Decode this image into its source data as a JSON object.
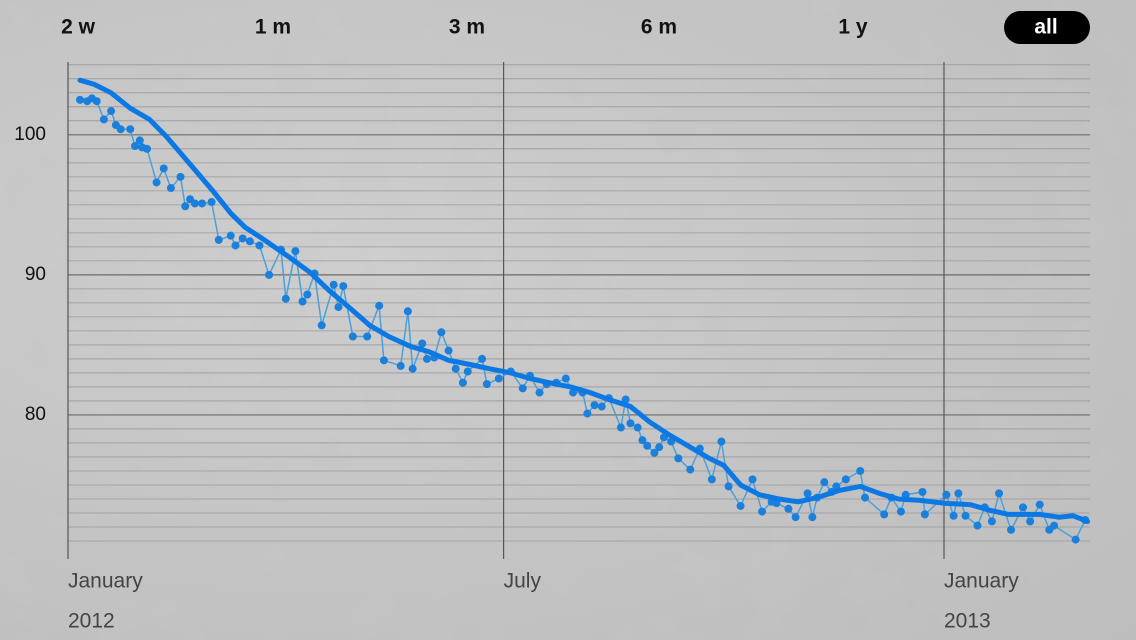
{
  "range_buttons": [
    "2 w",
    "1 m",
    "3 m",
    "6 m",
    "1 y",
    "all"
  ],
  "selected_range_index": 5,
  "chart_data": {
    "type": "line",
    "xlim": [
      0,
      427
    ],
    "xticks": [
      {
        "value": 0,
        "label": "January"
      },
      {
        "value": 182,
        "label": "July"
      },
      {
        "value": 366,
        "label": "January"
      }
    ],
    "x_year_ticks": [
      {
        "value": 0,
        "label": "2012"
      },
      {
        "value": 366,
        "label": "2013"
      }
    ],
    "ylim": [
      70,
      105.2
    ],
    "yticks": [
      80,
      90,
      100
    ],
    "y_minor_ticks": [
      71,
      72,
      73,
      74,
      75,
      76,
      77,
      78,
      79,
      81,
      82,
      83,
      84,
      85,
      86,
      87,
      88,
      89,
      91,
      92,
      93,
      94,
      95,
      96,
      97,
      98,
      99,
      101,
      102,
      103,
      104,
      105
    ],
    "grid": true,
    "series": [
      {
        "color": "#1b7fdc",
        "line_color": "#4aa0dc",
        "markers": true,
        "line_width": 1.5,
        "x": [
          5,
          8,
          10,
          12,
          15,
          18,
          20,
          22,
          26,
          28,
          30,
          31,
          33,
          37,
          40,
          43,
          47,
          49,
          51,
          53,
          56,
          60,
          63,
          68,
          70,
          73,
          76,
          80,
          84,
          89,
          91,
          95,
          98,
          100,
          103,
          106,
          111,
          113,
          115,
          119,
          125,
          130,
          132,
          139,
          142,
          144,
          148,
          150,
          153,
          156,
          159,
          162,
          165,
          167,
          173,
          175,
          180,
          185,
          190,
          193,
          197,
          200,
          204,
          208,
          211,
          215,
          217,
          220,
          223,
          226,
          231,
          233,
          235,
          238,
          240,
          242,
          245,
          247,
          249,
          252,
          255,
          260,
          264,
          269,
          273,
          276,
          281,
          286,
          290,
          294,
          296,
          301,
          304,
          309,
          311,
          313,
          316,
          319,
          321,
          325,
          331,
          333,
          341,
          344,
          348,
          350,
          357,
          358,
          367,
          370,
          372,
          375,
          380,
          383,
          386,
          389,
          394,
          399,
          402,
          406,
          410,
          412,
          421,
          425
        ],
        "values": [
          102.5,
          102.4,
          102.6,
          102.4,
          101.1,
          101.7,
          100.7,
          100.4,
          100.4,
          99.2,
          99.6,
          99.1,
          99.0,
          96.6,
          97.6,
          96.2,
          97.0,
          94.9,
          95.4,
          95.1,
          95.1,
          95.2,
          92.5,
          92.8,
          92.1,
          92.6,
          92.4,
          92.1,
          90.0,
          91.8,
          88.3,
          91.7,
          88.1,
          88.6,
          90.1,
          86.4,
          89.3,
          87.7,
          89.2,
          85.6,
          85.6,
          87.8,
          83.9,
          83.5,
          87.4,
          83.3,
          85.1,
          84.0,
          84.1,
          85.9,
          84.6,
          83.3,
          82.3,
          83.1,
          84.0,
          82.2,
          82.6,
          83.1,
          81.9,
          82.8,
          81.6,
          82.2,
          82.3,
          82.6,
          81.6,
          81.6,
          80.1,
          80.7,
          80.6,
          81.2,
          79.1,
          81.1,
          79.4,
          79.1,
          78.2,
          77.8,
          77.3,
          77.7,
          78.4,
          78.1,
          76.9,
          76.1,
          77.6,
          75.4,
          78.1,
          74.9,
          73.5,
          75.4,
          73.1,
          73.8,
          73.7,
          73.3,
          72.7,
          74.4,
          72.7,
          74.1,
          75.2,
          74.5,
          74.9,
          75.4,
          76.0,
          74.1,
          72.9,
          74.1,
          73.1,
          74.3,
          74.5,
          72.9,
          74.3,
          72.8,
          74.4,
          72.8,
          72.1,
          73.4,
          72.4,
          74.4,
          71.8,
          73.4,
          72.4,
          73.6,
          71.8,
          72.1,
          71.1,
          72.5
        ]
      },
      {
        "color": "#0b78e3",
        "line_color": "#0b78e3",
        "markers": false,
        "line_width": 5,
        "x": [
          5,
          11,
          18,
          26,
          34,
          41,
          47,
          55,
          61,
          68,
          74,
          82,
          93,
          101,
          109,
          118,
          126,
          134,
          143,
          151,
          159,
          168,
          176,
          185,
          193,
          201,
          210,
          218,
          226,
          235,
          243,
          251,
          260,
          268,
          274,
          281,
          289,
          297,
          305,
          313,
          322,
          331,
          339,
          347,
          356,
          366,
          377,
          385,
          393,
          406,
          414,
          420,
          426
        ],
        "values": [
          103.9,
          103.6,
          103.0,
          101.9,
          101.1,
          99.9,
          98.7,
          97.1,
          95.9,
          94.4,
          93.4,
          92.5,
          91.2,
          90.2,
          88.9,
          87.6,
          86.4,
          85.6,
          84.9,
          84.5,
          83.9,
          83.6,
          83.3,
          83.0,
          82.6,
          82.3,
          82.0,
          81.6,
          81.1,
          80.6,
          79.5,
          78.6,
          77.7,
          76.9,
          76.4,
          75.0,
          74.3,
          74.0,
          73.8,
          74.1,
          74.6,
          74.9,
          74.4,
          74.0,
          73.9,
          73.7,
          73.6,
          73.2,
          72.9,
          72.9,
          72.7,
          72.8,
          72.4
        ]
      }
    ]
  }
}
